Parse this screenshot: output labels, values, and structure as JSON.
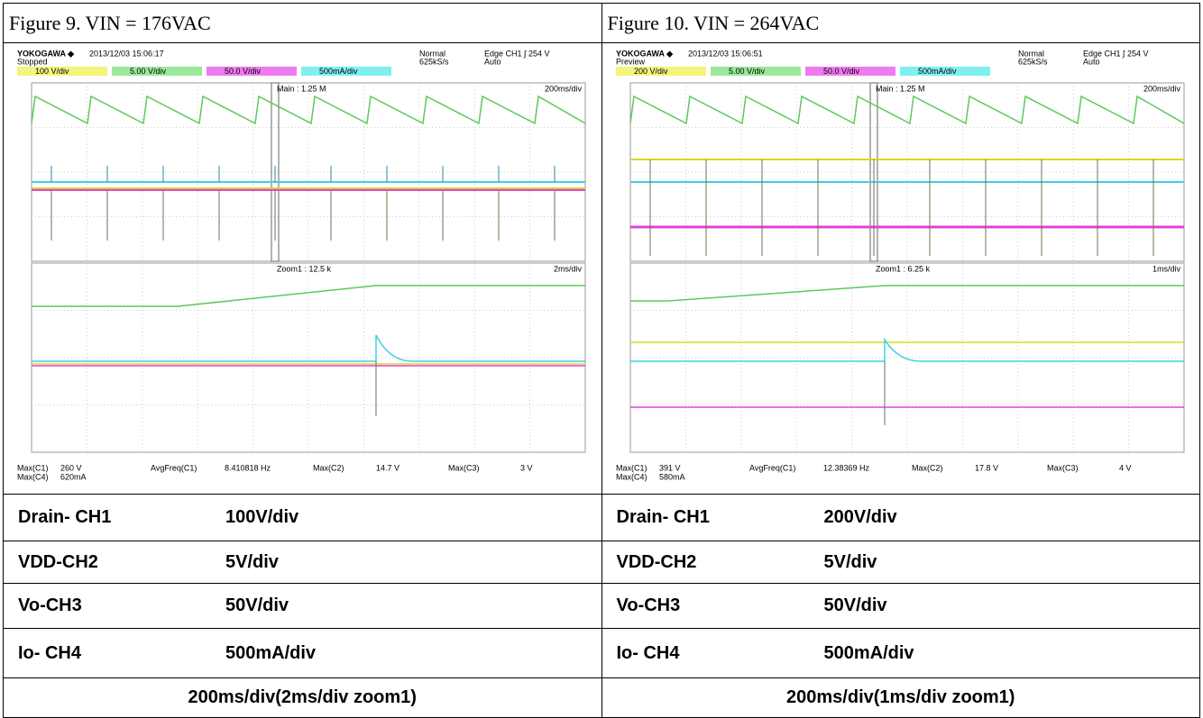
{
  "figures": [
    {
      "title": "Figure 9. VIN = 176VAC",
      "scope": {
        "brand": "YOKOGAWA ◆",
        "timestamp": "2013/12/03 15:06:17",
        "state": "Stopped",
        "mode": "Normal",
        "rate": "625kS/s",
        "trigger": "Edge CH1 ∫ 254 V",
        "trigger_mode": "Auto",
        "channels": [
          "100 V/div",
          "5.00 V/div",
          "50.0 V/div",
          "500mA/div"
        ],
        "main": "Main : 1.25 M",
        "main_scale": "200ms/div",
        "zoom": "Zoom1 : 12.5 k",
        "zoom_scale": "2ms/div",
        "measurements": [
          {
            "label": "Max(C1)",
            "value": "260 V"
          },
          {
            "label": "Max(C4)",
            "value": "620mA"
          },
          {
            "label": "AvgFreq(C1)",
            "value": "8.410818 Hz"
          },
          {
            "label": "Max(C2)",
            "value": "14.7 V"
          },
          {
            "label": "Max(C3)",
            "value": "3 V"
          }
        ]
      }
    },
    {
      "title": "Figure 10. VIN = 264VAC",
      "scope": {
        "brand": "YOKOGAWA ◆",
        "timestamp": "2013/12/03 15:06:51",
        "state": "Preview",
        "mode": "Normal",
        "rate": "625kS/s",
        "trigger": "Edge CH1 ∫ 254 V",
        "trigger_mode": "Auto",
        "channels": [
          "200 V/div",
          "5.00 V/div",
          "50.0 V/div",
          "500mA/div"
        ],
        "main": "Main : 1.25 M",
        "main_scale": "200ms/div",
        "zoom": "Zoom1 : 6.25 k",
        "zoom_scale": "1ms/div",
        "measurements": [
          {
            "label": "Max(C1)",
            "value": "391 V"
          },
          {
            "label": "Max(C4)",
            "value": "580mA"
          },
          {
            "label": "AvgFreq(C1)",
            "value": "12.38369 Hz"
          },
          {
            "label": "Max(C2)",
            "value": "17.8 V"
          },
          {
            "label": "Max(C3)",
            "value": "4 V"
          }
        ]
      }
    }
  ],
  "settings": {
    "rows": [
      [
        [
          "Drain- CH1",
          "100V/div"
        ],
        [
          "Drain- CH1",
          "200V/div"
        ]
      ],
      [
        [
          "VDD-CH2",
          "5V/div"
        ],
        [
          "VDD-CH2",
          "5V/div"
        ]
      ],
      [
        [
          "Vo-CH3",
          "50V/div"
        ],
        [
          "Vo-CH3",
          "50V/div"
        ]
      ],
      [
        [
          "Io- CH4",
          "500mA/div"
        ],
        [
          "Io- CH4",
          "500mA/div"
        ]
      ]
    ],
    "footer": [
      "200ms/div(2ms/div zoom1)",
      "200ms/div(1ms/div zoom1)"
    ]
  }
}
